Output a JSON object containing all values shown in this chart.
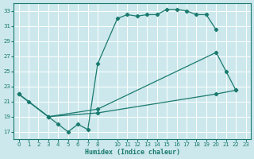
{
  "xlabel": "Humidex (Indice chaleur)",
  "bg_color": "#cce8ec",
  "grid_color": "#ffffff",
  "line_color": "#1a7a6e",
  "xlim": [
    -0.5,
    23.5
  ],
  "ylim": [
    16,
    34
  ],
  "xticks": [
    0,
    1,
    2,
    3,
    4,
    5,
    6,
    7,
    8,
    10,
    11,
    12,
    13,
    14,
    15,
    16,
    17,
    18,
    19,
    20,
    21,
    22,
    23
  ],
  "yticks": [
    17,
    19,
    21,
    23,
    25,
    27,
    29,
    31,
    33
  ],
  "series1": [
    [
      0,
      22
    ],
    [
      1,
      21
    ],
    [
      3,
      19
    ],
    [
      4,
      18
    ],
    [
      5,
      17
    ],
    [
      6,
      18
    ],
    [
      7,
      17.3
    ],
    [
      8,
      26
    ],
    [
      10,
      32
    ],
    [
      11,
      32.5
    ],
    [
      12,
      32.3
    ],
    [
      13,
      32.5
    ],
    [
      14,
      32.5
    ],
    [
      15,
      33.2
    ],
    [
      16,
      33.2
    ],
    [
      17,
      33
    ],
    [
      18,
      32.5
    ],
    [
      19,
      32.5
    ],
    [
      20,
      30.5
    ]
  ],
  "series2": [
    [
      0,
      22
    ],
    [
      3,
      19
    ],
    [
      8,
      20
    ],
    [
      20,
      27.5
    ],
    [
      21,
      25
    ],
    [
      22,
      22.5
    ]
  ],
  "series3": [
    [
      0,
      22
    ],
    [
      3,
      19
    ],
    [
      8,
      19.5
    ],
    [
      20,
      22
    ],
    [
      22,
      22.5
    ]
  ]
}
